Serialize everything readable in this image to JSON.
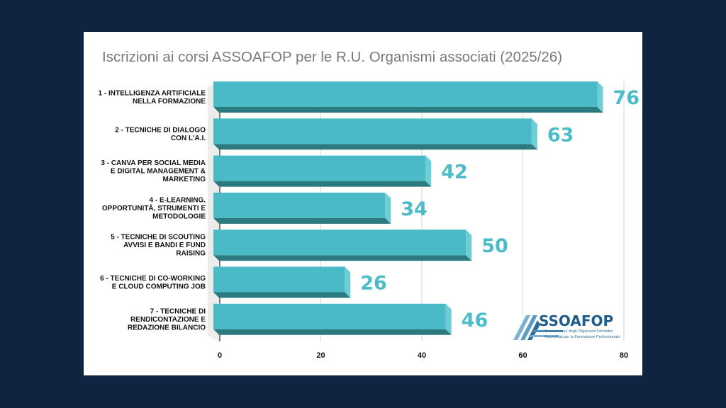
{
  "chart_data": {
    "type": "bar",
    "orientation": "horizontal",
    "title": "Iscrizioni ai corsi ASSOAFOP per le R.U. Organismi associati (2025/26)",
    "categories": [
      [
        "1 - INTELLIGENZA ARTIFICIALE",
        "NELLA FORMAZIONE"
      ],
      [
        "2 - TECNICHE DI DIALOGO",
        "CON L'A.I."
      ],
      [
        "3 - CANVA PER SOCIAL MEDIA",
        "E DIGITAL MANAGEMENT &",
        "MARKETING"
      ],
      [
        "4 - E-LEARNING.",
        "OPPORTUNITÀ, STRUMENTI E",
        "METODOLOGIE"
      ],
      [
        "5 - TECNICHE DI SCOUTING",
        "AVVISI E BANDI E FUND",
        "RAISING"
      ],
      [
        "6 - TECNICHE DI CO-WORKING",
        "E CLOUD COMPUTING JOB"
      ],
      [
        "7 - TECNICHE DI",
        "RENDICONTAZIONE E",
        "REDAZIONE BILANCIO"
      ]
    ],
    "values": [
      76,
      63,
      42,
      34,
      50,
      26,
      46
    ],
    "xlim": [
      0,
      80
    ],
    "xticks": [
      0,
      20,
      40,
      60,
      80
    ],
    "grid": true,
    "bar_color": "#4abbc6",
    "bar_shadow_color": "#2c7a80",
    "label_color": "#4dbcc8"
  },
  "logo": {
    "name": "SSOAFOP",
    "line1": "Associazione degli Organismi Formativi",
    "line2": "Accreditati per la Formazione Professionale"
  }
}
